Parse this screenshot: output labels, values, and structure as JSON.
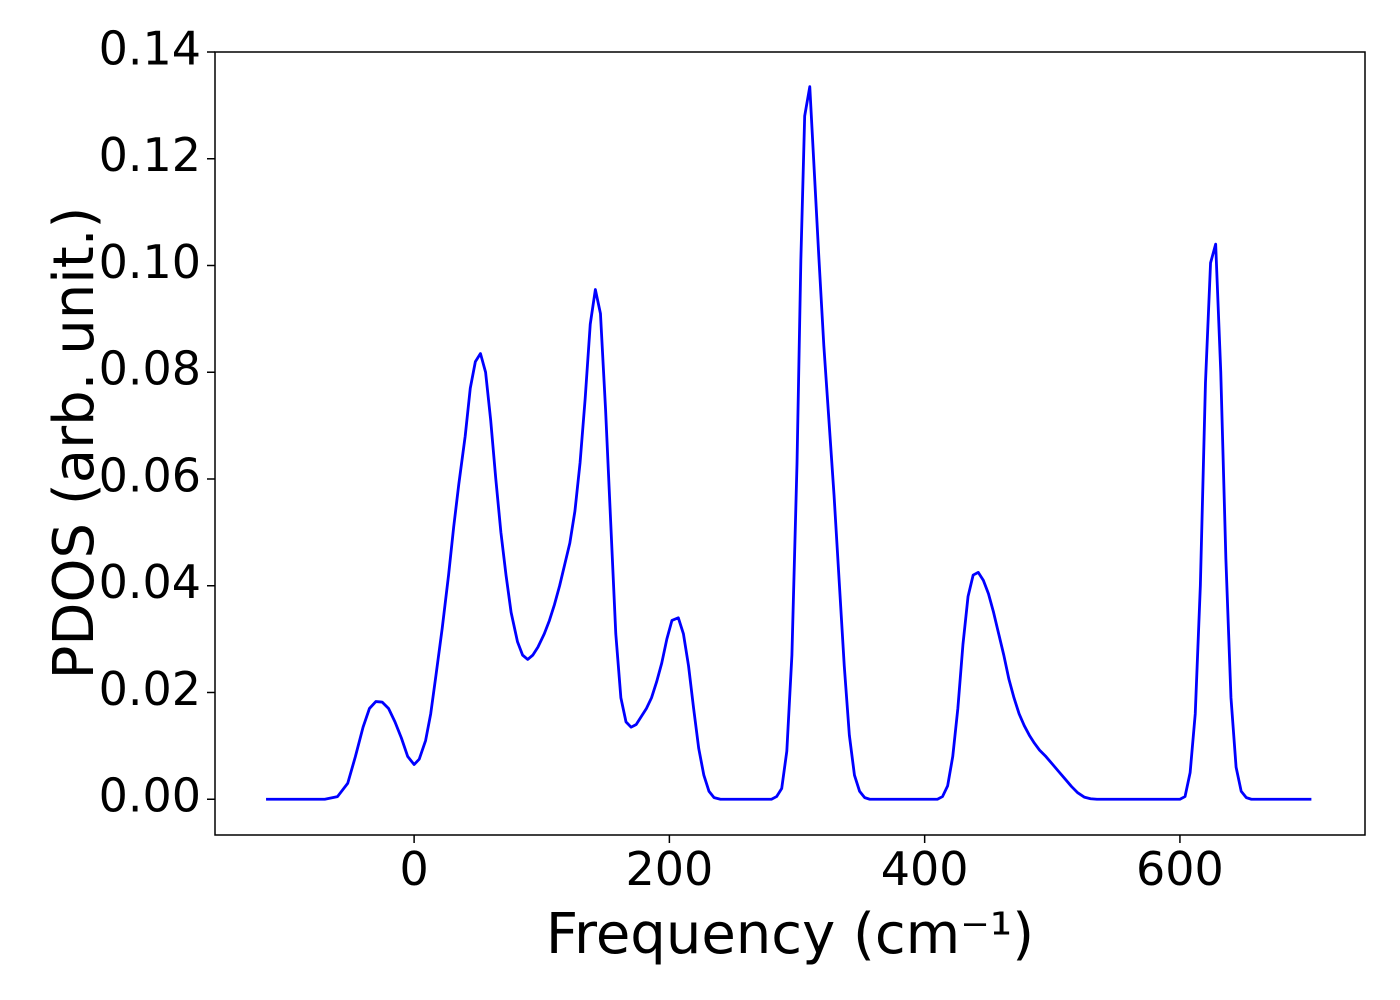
{
  "chart_data": {
    "type": "line",
    "xlabel": "Frequency (cm⁻¹)",
    "ylabel": "PDOS (arb. unit.)",
    "xlim": [
      -156,
      745
    ],
    "ylim": [
      -0.0067,
      0.14
    ],
    "xticks": [
      0,
      200,
      400,
      600
    ],
    "yticks": [
      {
        "value": 0,
        "label": "0.00"
      },
      {
        "value": 0.02,
        "label": "0.02"
      },
      {
        "value": 0.04,
        "label": "0.04"
      },
      {
        "value": 0.06,
        "label": "0.06"
      },
      {
        "value": 0.08,
        "label": "0.08"
      },
      {
        "value": 0.1,
        "label": "0.10"
      },
      {
        "value": 0.12,
        "label": "0.12"
      },
      {
        "value": 0.14,
        "label": "0.14"
      }
    ],
    "grid": false,
    "x": [
      -116,
      -70,
      -60,
      -52,
      -46,
      -40,
      -35,
      -30,
      -25,
      -20,
      -15,
      -10,
      -5,
      0,
      4,
      9,
      13,
      17,
      22,
      27,
      31,
      35,
      40,
      44,
      48,
      52,
      56,
      60,
      64,
      68,
      72,
      76,
      81,
      85,
      89,
      93,
      97,
      102,
      106,
      110,
      114,
      118,
      122,
      126,
      130,
      134,
      138,
      142,
      146,
      150,
      154,
      158,
      162,
      166,
      170,
      174,
      178,
      182,
      186,
      190,
      194,
      198,
      202,
      207,
      211,
      215,
      219,
      223,
      227,
      231,
      235,
      240,
      280,
      284,
      288,
      292,
      296,
      300,
      303,
      306,
      310,
      313,
      317,
      321,
      325,
      329,
      333,
      337,
      341,
      345,
      349,
      353,
      357,
      410,
      414,
      418,
      422,
      426,
      430,
      434,
      438,
      442,
      446,
      450,
      454,
      458,
      462,
      466,
      470,
      474,
      478,
      482,
      486,
      490,
      495,
      500,
      505,
      510,
      515,
      520,
      525,
      530,
      535,
      600,
      604,
      608,
      612,
      616,
      620,
      624,
      628,
      632,
      636,
      640,
      644,
      648,
      652,
      656,
      703
    ],
    "series": [
      {
        "color": "#0000ff",
        "values": [
          0,
          0,
          0.0005,
          0.003,
          0.008,
          0.0135,
          0.017,
          0.0183,
          0.0182,
          0.017,
          0.0145,
          0.0115,
          0.008,
          0.0065,
          0.0075,
          0.011,
          0.016,
          0.023,
          0.032,
          0.042,
          0.051,
          0.059,
          0.068,
          0.077,
          0.082,
          0.0835,
          0.08,
          0.071,
          0.06,
          0.05,
          0.042,
          0.035,
          0.0295,
          0.027,
          0.0262,
          0.027,
          0.0285,
          0.031,
          0.0335,
          0.0365,
          0.04,
          0.044,
          0.048,
          0.054,
          0.063,
          0.075,
          0.089,
          0.0955,
          0.091,
          0.073,
          0.052,
          0.031,
          0.019,
          0.0145,
          0.0135,
          0.014,
          0.0155,
          0.017,
          0.019,
          0.022,
          0.0255,
          0.03,
          0.0335,
          0.034,
          0.031,
          0.025,
          0.017,
          0.0095,
          0.0045,
          0.0015,
          0.0003,
          0,
          0,
          0.0005,
          0.002,
          0.009,
          0.027,
          0.063,
          0.101,
          0.128,
          0.1335,
          0.12,
          0.102,
          0.085,
          0.071,
          0.057,
          0.041,
          0.025,
          0.012,
          0.0045,
          0.0015,
          0.0003,
          0,
          0,
          0.0005,
          0.0025,
          0.008,
          0.017,
          0.029,
          0.038,
          0.042,
          0.0425,
          0.041,
          0.0385,
          0.035,
          0.031,
          0.027,
          0.0225,
          0.019,
          0.016,
          0.0138,
          0.012,
          0.0105,
          0.0092,
          0.008,
          0.0066,
          0.0052,
          0.0038,
          0.0024,
          0.0012,
          0.0004,
          0.0001,
          0,
          0,
          0.0005,
          0.005,
          0.016,
          0.04,
          0.078,
          0.1005,
          0.104,
          0.08,
          0.045,
          0.019,
          0.006,
          0.0015,
          0.0003,
          0,
          0
        ]
      }
    ]
  }
}
